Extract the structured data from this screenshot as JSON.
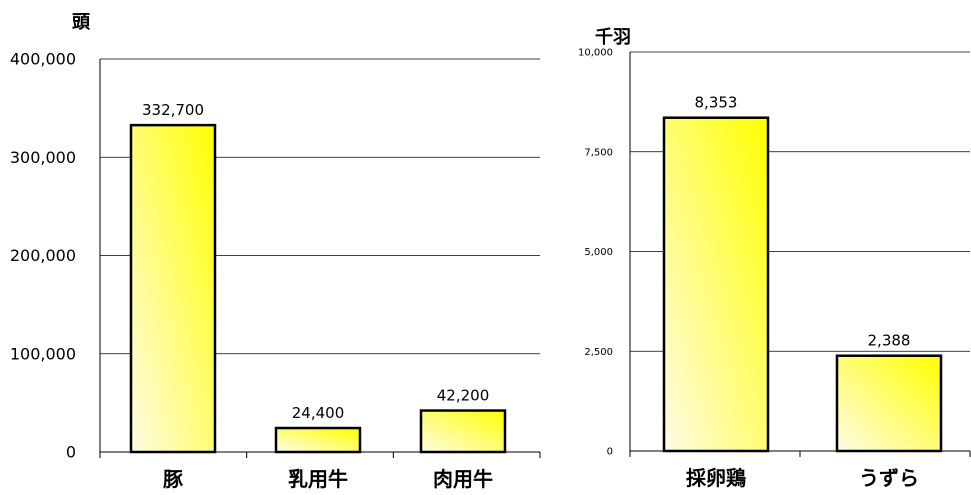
{
  "chart_data": [
    {
      "type": "bar",
      "ylabel": "頭",
      "categories": [
        "豚",
        "乳用牛",
        "肉用牛"
      ],
      "values": [
        332700,
        24400,
        42200
      ],
      "value_labels": [
        "332,700",
        "24,400",
        "42,200"
      ],
      "ylim": [
        0,
        400000
      ],
      "yticks": [
        0,
        100000,
        200000,
        300000,
        400000
      ],
      "ytick_labels": [
        "0",
        "100,000",
        "200,000",
        "300,000",
        "400,000"
      ],
      "grid": true,
      "colors": {
        "bar_light": "#fffbe6",
        "bar_dark": "#ffff00",
        "bar_stroke": "#000000",
        "grid": "#000000"
      }
    },
    {
      "type": "bar",
      "ylabel": "千羽",
      "categories": [
        "採卵鶏",
        "うずら"
      ],
      "values": [
        8353,
        2388
      ],
      "value_labels": [
        "8,353",
        "2,388"
      ],
      "ylim": [
        0,
        10000
      ],
      "yticks": [
        0,
        2500,
        5000,
        7500,
        10000
      ],
      "ytick_labels": [
        "0",
        "2,500",
        "5,000",
        "7,500",
        "10,000"
      ],
      "grid": true,
      "colors": {
        "bar_light": "#fffbe6",
        "bar_dark": "#ffff00",
        "bar_stroke": "#000000",
        "grid": "#000000"
      }
    }
  ]
}
